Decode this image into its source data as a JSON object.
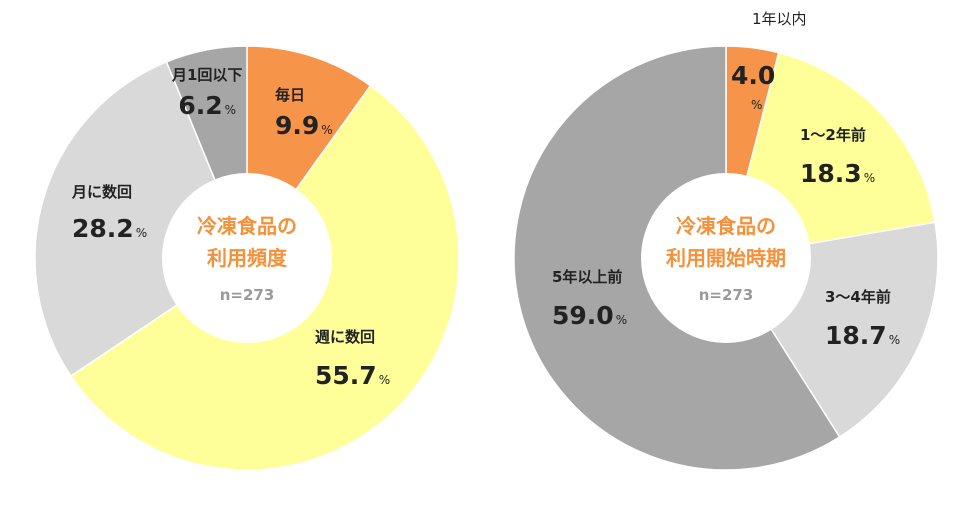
{
  "chart_data": [
    {
      "type": "pie",
      "center_label": [
        "冷凍食品の",
        "利用頻度"
      ],
      "n_label": "n=273",
      "unit": "%",
      "slices": [
        {
          "label": "毎日",
          "value": 9.9,
          "display": "9.9",
          "color": "#f6944a"
        },
        {
          "label": "週に数回",
          "value": 55.7,
          "display": "55.7",
          "color": "#ffff99"
        },
        {
          "label": "月に数回",
          "value": 28.2,
          "display": "28.2",
          "color": "#d9d9d9"
        },
        {
          "label": "月1回以下",
          "value": 6.2,
          "display": "6.2",
          "color": "#a6a6a6"
        }
      ]
    },
    {
      "type": "pie",
      "center_label": [
        "冷凍食品の",
        "利用開始時期"
      ],
      "n_label": "n=273",
      "unit": "%",
      "slices": [
        {
          "label": "1年以内",
          "value": 4.0,
          "display": "4.0",
          "color": "#f6944a"
        },
        {
          "label": "1～2年前",
          "value": 18.3,
          "display": "18.3",
          "color": "#ffff99"
        },
        {
          "label": "3～4年前",
          "value": 18.7,
          "display": "18.7",
          "color": "#d9d9d9"
        },
        {
          "label": "5年以上前",
          "value": 59.0,
          "display": "59.0",
          "color": "#a6a6a6"
        }
      ]
    }
  ]
}
